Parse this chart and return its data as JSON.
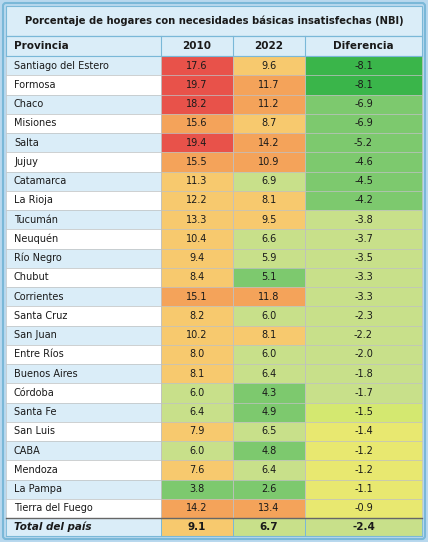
{
  "title": "Porcentaje de hogares con necesidades básicas insatisfechas (NBI)",
  "headers": [
    "Provincia",
    "2010",
    "2022",
    "Diferencia"
  ],
  "rows": [
    [
      "Santiago del Estero",
      "17.6",
      "9.6",
      "-8.1"
    ],
    [
      "Formosa",
      "19.7",
      "11.7",
      "-8.1"
    ],
    [
      "Chaco",
      "18.2",
      "11.2",
      "-6.9"
    ],
    [
      "Misiones",
      "15.6",
      "8.7",
      "-6.9"
    ],
    [
      "Salta",
      "19.4",
      "14.2",
      "-5.2"
    ],
    [
      "Jujuy",
      "15.5",
      "10.9",
      "-4.6"
    ],
    [
      "Catamarca",
      "11.3",
      "6.9",
      "-4.5"
    ],
    [
      "La Rioja",
      "12.2",
      "8.1",
      "-4.2"
    ],
    [
      "Tucumán",
      "13.3",
      "9.5",
      "-3.8"
    ],
    [
      "Neuquén",
      "10.4",
      "6.6",
      "-3.7"
    ],
    [
      "Río Negro",
      "9.4",
      "5.9",
      "-3.5"
    ],
    [
      "Chubut",
      "8.4",
      "5.1",
      "-3.3"
    ],
    [
      "Corrientes",
      "15.1",
      "11.8",
      "-3.3"
    ],
    [
      "Santa Cruz",
      "8.2",
      "6.0",
      "-2.3"
    ],
    [
      "San Juan",
      "10.2",
      "8.1",
      "-2.2"
    ],
    [
      "Entre Ríos",
      "8.0",
      "6.0",
      "-2.0"
    ],
    [
      "Buenos Aires",
      "8.1",
      "6.4",
      "-1.8"
    ],
    [
      "Córdoba",
      "6.0",
      "4.3",
      "-1.7"
    ],
    [
      "Santa Fe",
      "6.4",
      "4.9",
      "-1.5"
    ],
    [
      "San Luis",
      "7.9",
      "6.5",
      "-1.4"
    ],
    [
      "CABA",
      "6.0",
      "4.8",
      "-1.2"
    ],
    [
      "Mendoza",
      "7.6",
      "6.4",
      "-1.2"
    ],
    [
      "La Pampa",
      "3.8",
      "2.6",
      "-1.1"
    ],
    [
      "Tierra del Fuego",
      "14.2",
      "13.4",
      "-0.9"
    ]
  ],
  "total_row": [
    "Total del país",
    "9.1",
    "6.7",
    "-2.4"
  ],
  "col2010_colors": [
    "#e8524a",
    "#e8524a",
    "#e8524a",
    "#f4a35a",
    "#e8524a",
    "#f4a35a",
    "#f7c96e",
    "#f7c96e",
    "#f7c96e",
    "#f7c96e",
    "#f7c96e",
    "#f7c96e",
    "#f4a35a",
    "#f7c96e",
    "#f7c96e",
    "#f7c96e",
    "#f7c96e",
    "#c8e08a",
    "#c8e08a",
    "#f7c96e",
    "#c8e08a",
    "#f7c96e",
    "#7dc96e",
    "#f4a35a"
  ],
  "col2022_colors": [
    "#f7c96e",
    "#f4a35a",
    "#f4a35a",
    "#f7c96e",
    "#f4a35a",
    "#f4a35a",
    "#c8e08a",
    "#f7c96e",
    "#f7c96e",
    "#c8e08a",
    "#c8e08a",
    "#7dc96e",
    "#f4a35a",
    "#c8e08a",
    "#f7c96e",
    "#c8e08a",
    "#c8e08a",
    "#7dc96e",
    "#7dc96e",
    "#c8e08a",
    "#7dc96e",
    "#c8e08a",
    "#7dc96e",
    "#f4a35a"
  ],
  "diff_colors": [
    "#3ab54a",
    "#3ab54a",
    "#7dc96e",
    "#7dc96e",
    "#7dc96e",
    "#7dc96e",
    "#7dc96e",
    "#7dc96e",
    "#c8e08a",
    "#c8e08a",
    "#c8e08a",
    "#c8e08a",
    "#c8e08a",
    "#c8e08a",
    "#c8e08a",
    "#c8e08a",
    "#c8e08a",
    "#c8e08a",
    "#d4e870",
    "#e8e870",
    "#e8e870",
    "#e8e870",
    "#e8e870",
    "#e8e870"
  ],
  "total_2010_color": "#f7c96e",
  "total_2022_color": "#c8e08a",
  "total_diff_color": "#c8e08a",
  "bg_color": "#b8d8ee",
  "header_bg": "#daedf8",
  "title_bg": "#daedf8",
  "total_bg": "#daedf8",
  "row_bg_alt": "#daedf8",
  "row_bg_white": "#ffffff",
  "border_color": "#7ab8d8"
}
